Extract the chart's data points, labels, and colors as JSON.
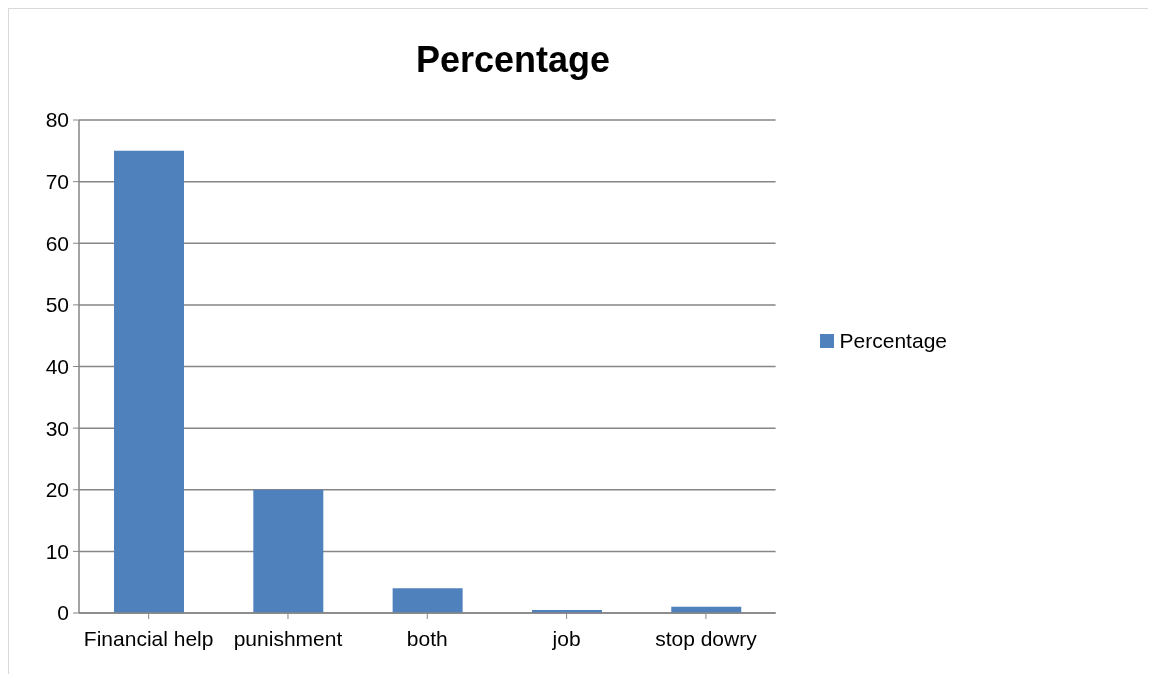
{
  "chart_data": {
    "type": "bar",
    "title": "Percentage",
    "categories": [
      "Financial help",
      "punishment",
      "both",
      "job",
      "stop dowry"
    ],
    "series": [
      {
        "name": "Percentage",
        "color": "#4f81bd",
        "values": [
          75,
          20,
          4,
          0.5,
          1
        ]
      }
    ],
    "ylim": [
      0,
      80
    ],
    "yticks": [
      0,
      10,
      20,
      30,
      40,
      50,
      60,
      70,
      80
    ],
    "grid": "y",
    "legend": "right"
  }
}
